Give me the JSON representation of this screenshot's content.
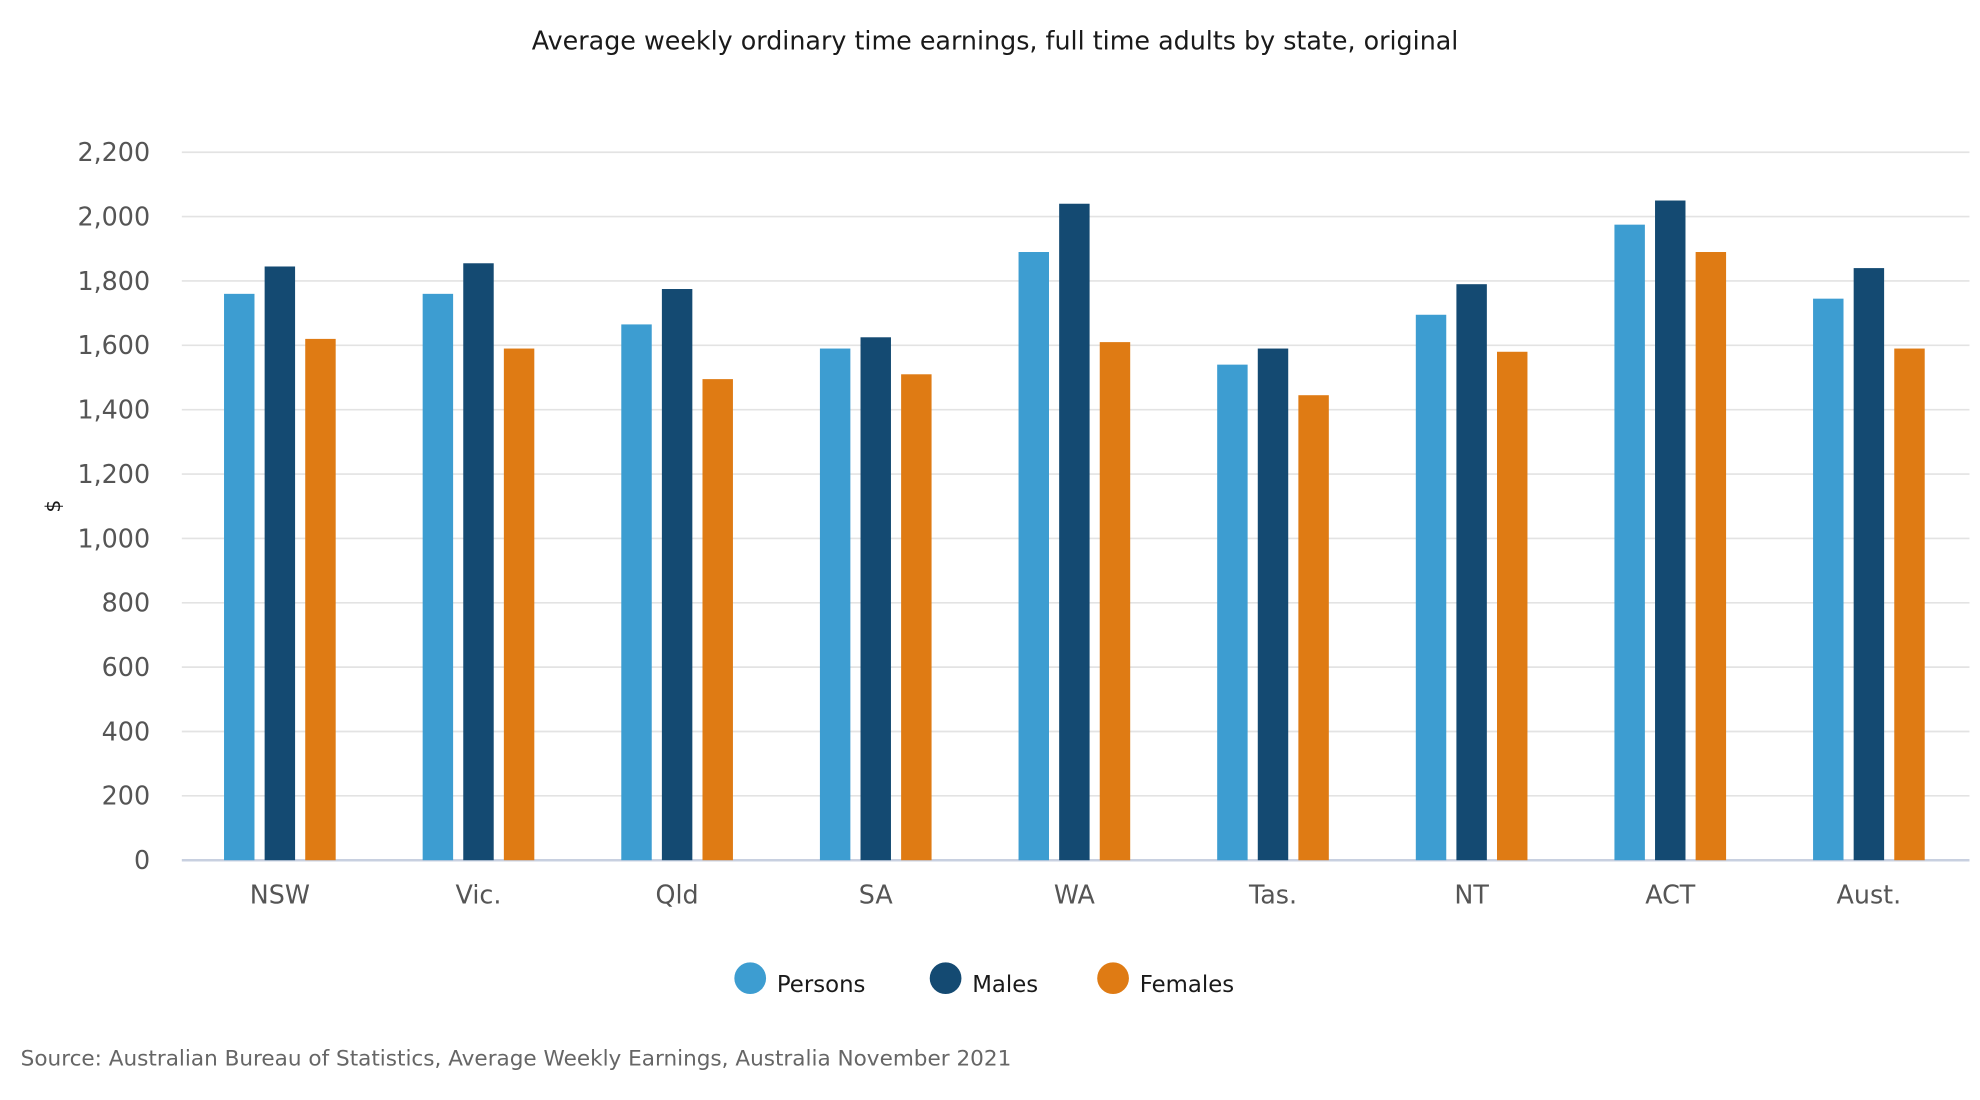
{
  "chart_data": {
    "type": "bar",
    "title": "Average weekly ordinary time earnings, full time adults by state, original",
    "xlabel": "",
    "ylabel": "$",
    "ylim": [
      0,
      2200
    ],
    "yticks": [
      "0",
      "200",
      "400",
      "600",
      "800",
      "1,000",
      "1,200",
      "1,400",
      "1,600",
      "1,800",
      "2,000",
      "2,200"
    ],
    "grid": true,
    "legend_position": "bottom",
    "categories": [
      "NSW",
      "Vic.",
      "Qld",
      "SA",
      "WA",
      "Tas.",
      "NT",
      "ACT",
      "Aust."
    ],
    "series": [
      {
        "name": "Persons",
        "color": "#3d9dd1",
        "values": [
          1760,
          1760,
          1665,
          1590,
          1890,
          1540,
          1695,
          1975,
          1745
        ]
      },
      {
        "name": "Males",
        "color": "#144a72",
        "values": [
          1845,
          1855,
          1775,
          1625,
          2040,
          1590,
          1790,
          2050,
          1840
        ]
      },
      {
        "name": "Females",
        "color": "#df7b14",
        "values": [
          1620,
          1590,
          1495,
          1510,
          1610,
          1445,
          1580,
          1890,
          1590
        ]
      }
    ],
    "source": "Source: Australian Bureau of Statistics, Average Weekly Earnings, Australia November 2021"
  }
}
